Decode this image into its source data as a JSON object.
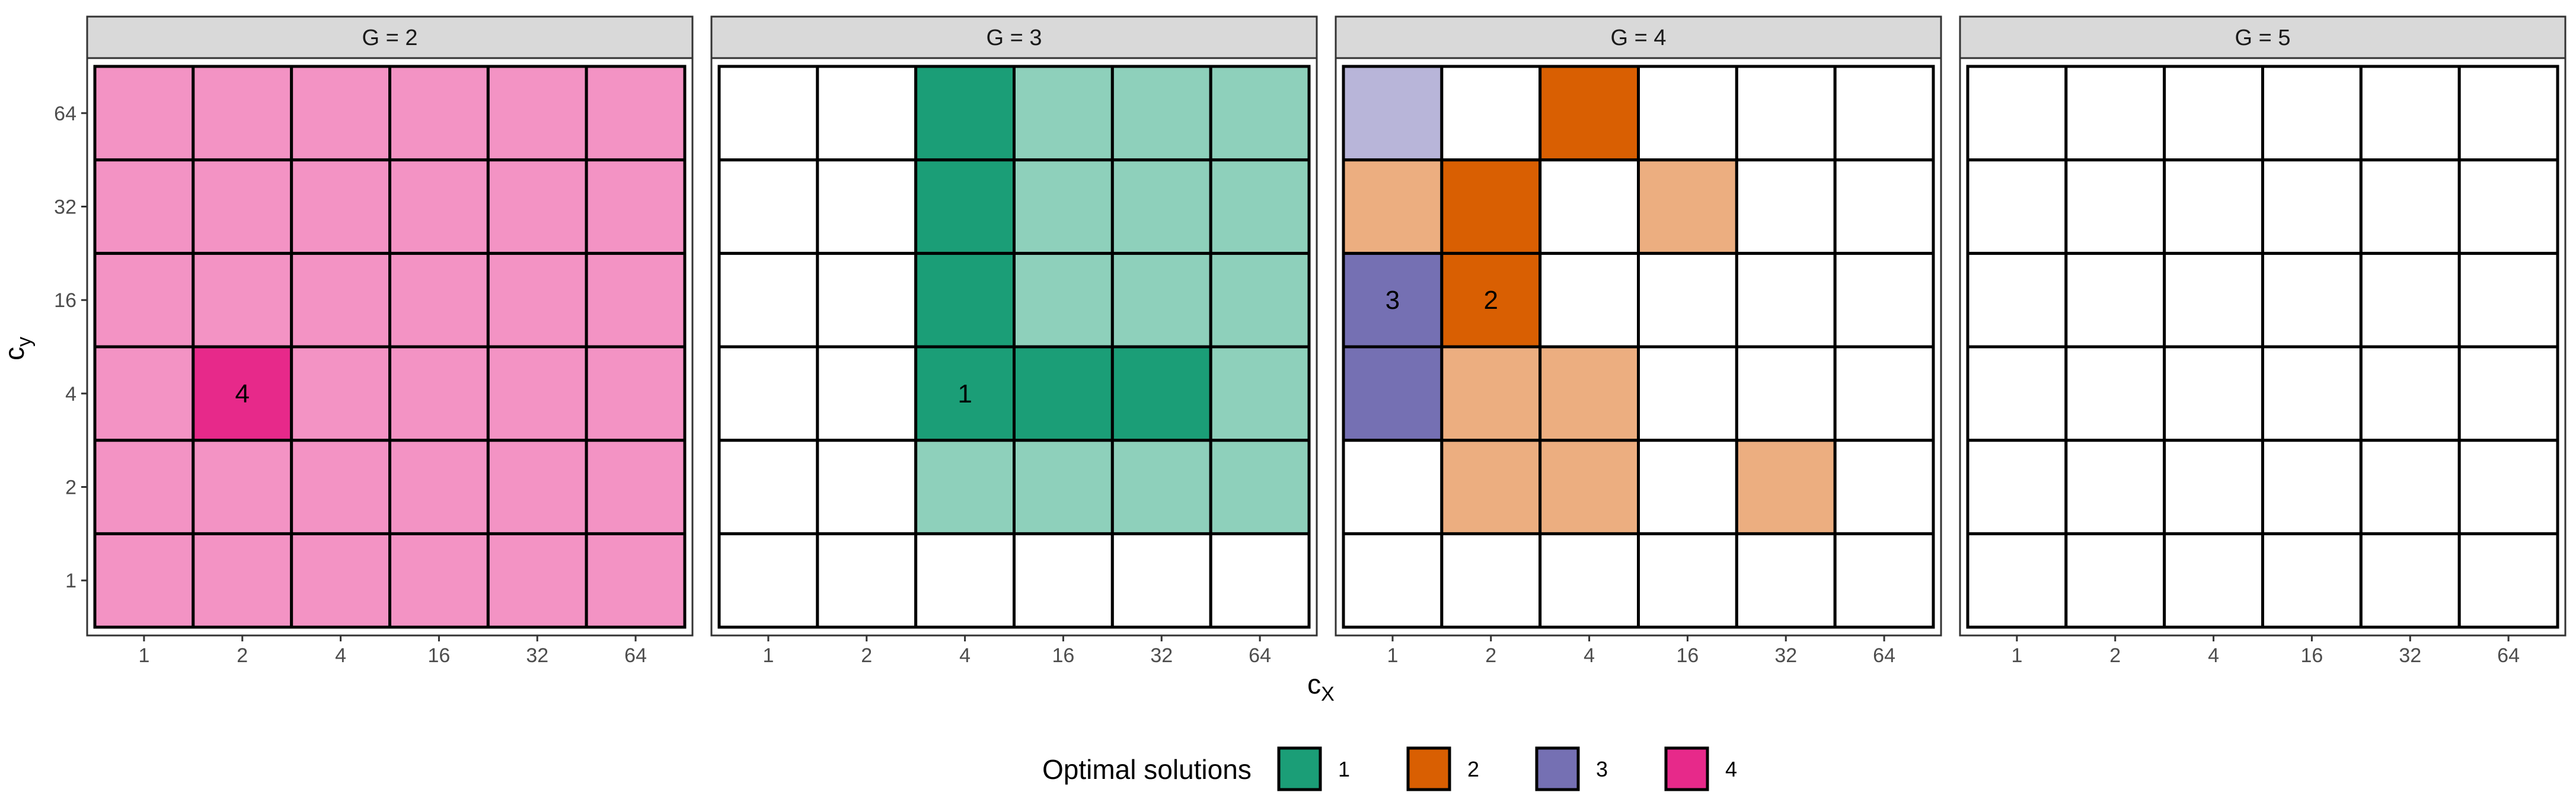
{
  "chart_data": {
    "type": "heatmap",
    "xlabel": "c",
    "xlabel_sub": "X",
    "ylabel": "c",
    "ylabel_sub": "y",
    "x_categories": [
      "1",
      "2",
      "4",
      "16",
      "32",
      "64"
    ],
    "y_categories": [
      "1",
      "2",
      "4",
      "16",
      "32",
      "64"
    ],
    "legend": {
      "title": "Optimal solutions",
      "position": "bottom",
      "entries": [
        {
          "label": "1",
          "color": "#1B9E77"
        },
        {
          "label": "2",
          "color": "#D95F02"
        },
        {
          "label": "3",
          "color": "#7570B3"
        },
        {
          "label": "4",
          "color": "#E7298A"
        }
      ]
    },
    "light_colors": {
      "1": "#8ED0BB",
      "2": "#ECAE80",
      "3": "#B8B5D9",
      "4": "#F393C4"
    },
    "panels": [
      {
        "label": "G =  2",
        "cells": [
          {
            "x": "1",
            "y": "1",
            "solution": "4",
            "optimal": false
          },
          {
            "x": "2",
            "y": "1",
            "solution": "4",
            "optimal": false
          },
          {
            "x": "4",
            "y": "1",
            "solution": "4",
            "optimal": false
          },
          {
            "x": "16",
            "y": "1",
            "solution": "4",
            "optimal": false
          },
          {
            "x": "32",
            "y": "1",
            "solution": "4",
            "optimal": false
          },
          {
            "x": "64",
            "y": "1",
            "solution": "4",
            "optimal": false
          },
          {
            "x": "1",
            "y": "2",
            "solution": "4",
            "optimal": false
          },
          {
            "x": "2",
            "y": "2",
            "solution": "4",
            "optimal": false
          },
          {
            "x": "4",
            "y": "2",
            "solution": "4",
            "optimal": false
          },
          {
            "x": "16",
            "y": "2",
            "solution": "4",
            "optimal": false
          },
          {
            "x": "32",
            "y": "2",
            "solution": "4",
            "optimal": false
          },
          {
            "x": "64",
            "y": "2",
            "solution": "4",
            "optimal": false
          },
          {
            "x": "1",
            "y": "4",
            "solution": "4",
            "optimal": false
          },
          {
            "x": "2",
            "y": "4",
            "solution": "4",
            "optimal": true,
            "label": "4"
          },
          {
            "x": "4",
            "y": "4",
            "solution": "4",
            "optimal": false
          },
          {
            "x": "16",
            "y": "4",
            "solution": "4",
            "optimal": false
          },
          {
            "x": "32",
            "y": "4",
            "solution": "4",
            "optimal": false
          },
          {
            "x": "64",
            "y": "4",
            "solution": "4",
            "optimal": false
          },
          {
            "x": "1",
            "y": "16",
            "solution": "4",
            "optimal": false
          },
          {
            "x": "2",
            "y": "16",
            "solution": "4",
            "optimal": false
          },
          {
            "x": "4",
            "y": "16",
            "solution": "4",
            "optimal": false
          },
          {
            "x": "16",
            "y": "16",
            "solution": "4",
            "optimal": false
          },
          {
            "x": "32",
            "y": "16",
            "solution": "4",
            "optimal": false
          },
          {
            "x": "64",
            "y": "16",
            "solution": "4",
            "optimal": false
          },
          {
            "x": "1",
            "y": "32",
            "solution": "4",
            "optimal": false
          },
          {
            "x": "2",
            "y": "32",
            "solution": "4",
            "optimal": false
          },
          {
            "x": "4",
            "y": "32",
            "solution": "4",
            "optimal": false
          },
          {
            "x": "16",
            "y": "32",
            "solution": "4",
            "optimal": false
          },
          {
            "x": "32",
            "y": "32",
            "solution": "4",
            "optimal": false
          },
          {
            "x": "64",
            "y": "32",
            "solution": "4",
            "optimal": false
          },
          {
            "x": "1",
            "y": "64",
            "solution": "4",
            "optimal": false
          },
          {
            "x": "2",
            "y": "64",
            "solution": "4",
            "optimal": false
          },
          {
            "x": "4",
            "y": "64",
            "solution": "4",
            "optimal": false
          },
          {
            "x": "16",
            "y": "64",
            "solution": "4",
            "optimal": false
          },
          {
            "x": "32",
            "y": "64",
            "solution": "4",
            "optimal": false
          },
          {
            "x": "64",
            "y": "64",
            "solution": "4",
            "optimal": false
          }
        ]
      },
      {
        "label": "G =  3",
        "cells": [
          {
            "x": "4",
            "y": "2",
            "solution": "1",
            "optimal": false
          },
          {
            "x": "16",
            "y": "2",
            "solution": "1",
            "optimal": false
          },
          {
            "x": "32",
            "y": "2",
            "solution": "1",
            "optimal": false
          },
          {
            "x": "64",
            "y": "2",
            "solution": "1",
            "optimal": false
          },
          {
            "x": "4",
            "y": "4",
            "solution": "1",
            "optimal": true,
            "label": "1"
          },
          {
            "x": "16",
            "y": "4",
            "solution": "1",
            "optimal": true
          },
          {
            "x": "32",
            "y": "4",
            "solution": "1",
            "optimal": true
          },
          {
            "x": "64",
            "y": "4",
            "solution": "1",
            "optimal": false
          },
          {
            "x": "4",
            "y": "16",
            "solution": "1",
            "optimal": true
          },
          {
            "x": "16",
            "y": "16",
            "solution": "1",
            "optimal": false
          },
          {
            "x": "32",
            "y": "16",
            "solution": "1",
            "optimal": false
          },
          {
            "x": "64",
            "y": "16",
            "solution": "1",
            "optimal": false
          },
          {
            "x": "4",
            "y": "32",
            "solution": "1",
            "optimal": true
          },
          {
            "x": "16",
            "y": "32",
            "solution": "1",
            "optimal": false
          },
          {
            "x": "32",
            "y": "32",
            "solution": "1",
            "optimal": false
          },
          {
            "x": "64",
            "y": "32",
            "solution": "1",
            "optimal": false
          },
          {
            "x": "4",
            "y": "64",
            "solution": "1",
            "optimal": true
          },
          {
            "x": "16",
            "y": "64",
            "solution": "1",
            "optimal": false
          },
          {
            "x": "32",
            "y": "64",
            "solution": "1",
            "optimal": false
          },
          {
            "x": "64",
            "y": "64",
            "solution": "1",
            "optimal": false
          }
        ]
      },
      {
        "label": "G =  4",
        "cells": [
          {
            "x": "2",
            "y": "2",
            "solution": "2",
            "optimal": false
          },
          {
            "x": "4",
            "y": "2",
            "solution": "2",
            "optimal": false
          },
          {
            "x": "32",
            "y": "2",
            "solution": "2",
            "optimal": false
          },
          {
            "x": "1",
            "y": "4",
            "solution": "3",
            "optimal": true
          },
          {
            "x": "2",
            "y": "4",
            "solution": "2",
            "optimal": false
          },
          {
            "x": "4",
            "y": "4",
            "solution": "2",
            "optimal": false
          },
          {
            "x": "1",
            "y": "16",
            "solution": "3",
            "optimal": true,
            "label": "3"
          },
          {
            "x": "2",
            "y": "16",
            "solution": "2",
            "optimal": true,
            "label": "2"
          },
          {
            "x": "1",
            "y": "32",
            "solution": "2",
            "optimal": false
          },
          {
            "x": "2",
            "y": "32",
            "solution": "2",
            "optimal": true
          },
          {
            "x": "16",
            "y": "32",
            "solution": "2",
            "optimal": false
          },
          {
            "x": "1",
            "y": "64",
            "solution": "3",
            "optimal": false
          },
          {
            "x": "4",
            "y": "64",
            "solution": "2",
            "optimal": true
          }
        ]
      },
      {
        "label": "G =  5",
        "cells": []
      }
    ]
  }
}
